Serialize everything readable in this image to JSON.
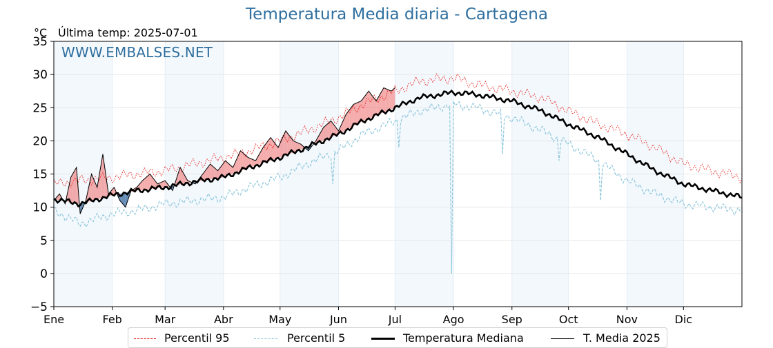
{
  "header": {
    "title": "Temperatura Media diaria - Cartagena",
    "unit": "°C",
    "last_temp": "Última temp: 2025-07-01",
    "watermark": "WWW.EMBALSES.NET"
  },
  "legend": {
    "p95": "Percentil 95",
    "p5": "Percentil 5",
    "median": "Temperatura Mediana",
    "t2025": "T. Media 2025"
  },
  "colors": {
    "p95": "#e8201c",
    "p5": "#8ec7dc",
    "median": "#000000",
    "t2025": "#000000",
    "above": "#f08080",
    "below": "#4a78a8",
    "band": "#dbe9f6"
  },
  "chart_data": {
    "type": "line",
    "title": "Temperatura Media diaria - Cartagena",
    "ylabel": "°C",
    "ylim": [
      -5,
      35
    ],
    "yticks": [
      35,
      30,
      25,
      20,
      15,
      10,
      5,
      0,
      -5
    ],
    "ytick_labels": [
      "35",
      "30",
      "25",
      "20",
      "15",
      "10",
      "5",
      "0",
      "−5"
    ],
    "x_range_days": [
      1,
      366
    ],
    "months": [
      "Ene",
      "Feb",
      "Mar",
      "Abr",
      "May",
      "Jun",
      "Jul",
      "Ago",
      "Sep",
      "Oct",
      "Nov",
      "Dic"
    ],
    "month_start_days": [
      1,
      32,
      60,
      91,
      121,
      152,
      182,
      213,
      244,
      274,
      305,
      335
    ],
    "grid": true,
    "legend_position": "bottom-center",
    "series": [
      {
        "name": "Temperatura Mediana",
        "day": [
          1,
          15,
          32,
          45,
          60,
          75,
          91,
          105,
          121,
          135,
          152,
          165,
          182,
          195,
          213,
          225,
          244,
          260,
          274,
          290,
          305,
          320,
          335,
          350,
          366
        ],
        "values": [
          11.2,
          10.5,
          11.8,
          12.5,
          13.0,
          13.8,
          14.5,
          16.0,
          17.5,
          19.0,
          21.0,
          23.0,
          25.0,
          26.5,
          27.3,
          27.0,
          26.0,
          24.5,
          22.5,
          20.5,
          18.0,
          15.5,
          13.5,
          12.5,
          11.5
        ]
      },
      {
        "name": "Percentil 95",
        "day": [
          1,
          15,
          32,
          45,
          60,
          75,
          91,
          105,
          121,
          135,
          152,
          165,
          182,
          195,
          213,
          225,
          244,
          260,
          274,
          290,
          305,
          320,
          335,
          350,
          366
        ],
        "values": [
          13.5,
          14.0,
          14.5,
          15.0,
          15.5,
          16.5,
          17.5,
          18.5,
          20.0,
          21.5,
          23.5,
          25.5,
          27.5,
          29.0,
          29.5,
          28.5,
          27.5,
          26.5,
          24.5,
          22.5,
          21.0,
          19.0,
          16.5,
          15.5,
          14.5
        ]
      },
      {
        "name": "Percentil 5",
        "day": [
          1,
          15,
          32,
          45,
          60,
          75,
          91,
          105,
          121,
          135,
          152,
          165,
          182,
          195,
          213,
          225,
          244,
          260,
          274,
          290,
          305,
          320,
          335,
          350,
          366
        ],
        "values": [
          9.5,
          7.5,
          9.0,
          9.5,
          10.5,
          11.0,
          11.5,
          13.0,
          14.5,
          16.5,
          18.5,
          21.0,
          23.0,
          24.5,
          25.5,
          25.0,
          23.5,
          21.5,
          19.5,
          17.0,
          14.0,
          12.0,
          10.5,
          10.0,
          9.5
        ]
      },
      {
        "name": "T. Media 2025",
        "day": [
          1,
          4,
          7,
          10,
          13,
          15,
          18,
          21,
          24,
          27,
          30,
          33,
          36,
          39,
          42,
          45,
          48,
          52,
          56,
          60,
          64,
          68,
          72,
          76,
          80,
          84,
          88,
          92,
          96,
          100,
          104,
          108,
          112,
          116,
          120,
          124,
          128,
          132,
          136,
          140,
          144,
          148,
          152,
          156,
          160,
          164,
          168,
          172,
          176,
          180,
          182
        ],
        "values": [
          11.0,
          12.0,
          10.5,
          14.5,
          16.0,
          9.0,
          11.0,
          15.0,
          13.0,
          18.0,
          12.0,
          13.0,
          11.0,
          10.0,
          12.5,
          13.0,
          14.0,
          15.0,
          13.5,
          14.0,
          12.5,
          16.0,
          14.0,
          13.5,
          15.0,
          16.5,
          15.5,
          17.0,
          16.0,
          18.5,
          17.5,
          17.0,
          19.0,
          20.5,
          19.0,
          21.5,
          20.0,
          19.5,
          18.5,
          20.0,
          22.0,
          23.0,
          21.5,
          24.0,
          25.5,
          26.0,
          27.5,
          26.0,
          28.0,
          27.5,
          28.0
        ]
      }
    ],
    "notable_dips_percentil5": [
      {
        "day": 149,
        "value": 13.5
      },
      {
        "day": 184,
        "value": 19.0
      },
      {
        "day": 212,
        "value": 0.0
      },
      {
        "day": 239,
        "value": 18.0
      },
      {
        "day": 269,
        "value": 17.0
      },
      {
        "day": 291,
        "value": 11.0
      }
    ]
  }
}
